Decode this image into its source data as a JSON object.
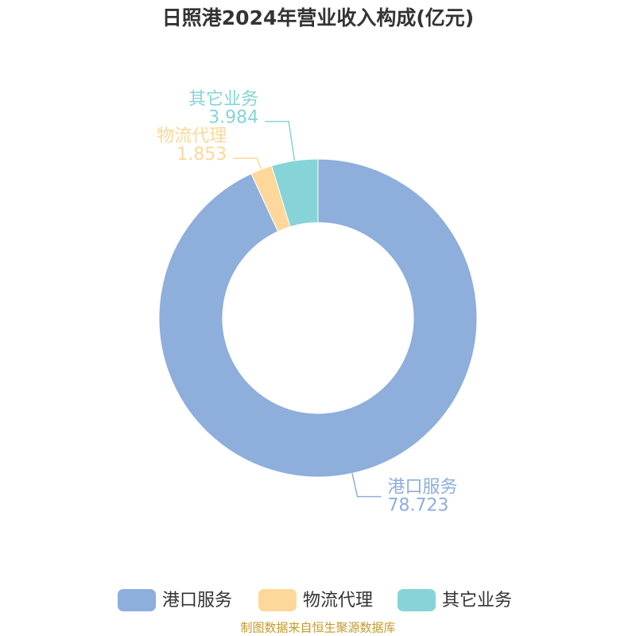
{
  "chart_data": {
    "type": "donut",
    "title": "日照港2024年营业收入构成(亿元)",
    "categories": [
      "港口服务",
      "物流代理",
      "其它业务"
    ],
    "values": [
      78.723,
      1.853,
      3.984
    ],
    "colors": [
      "#8eaedb",
      "#fdd89a",
      "#86d4d8"
    ],
    "legend": "bottom",
    "source": "制图数据来自恒生聚源数据库"
  }
}
